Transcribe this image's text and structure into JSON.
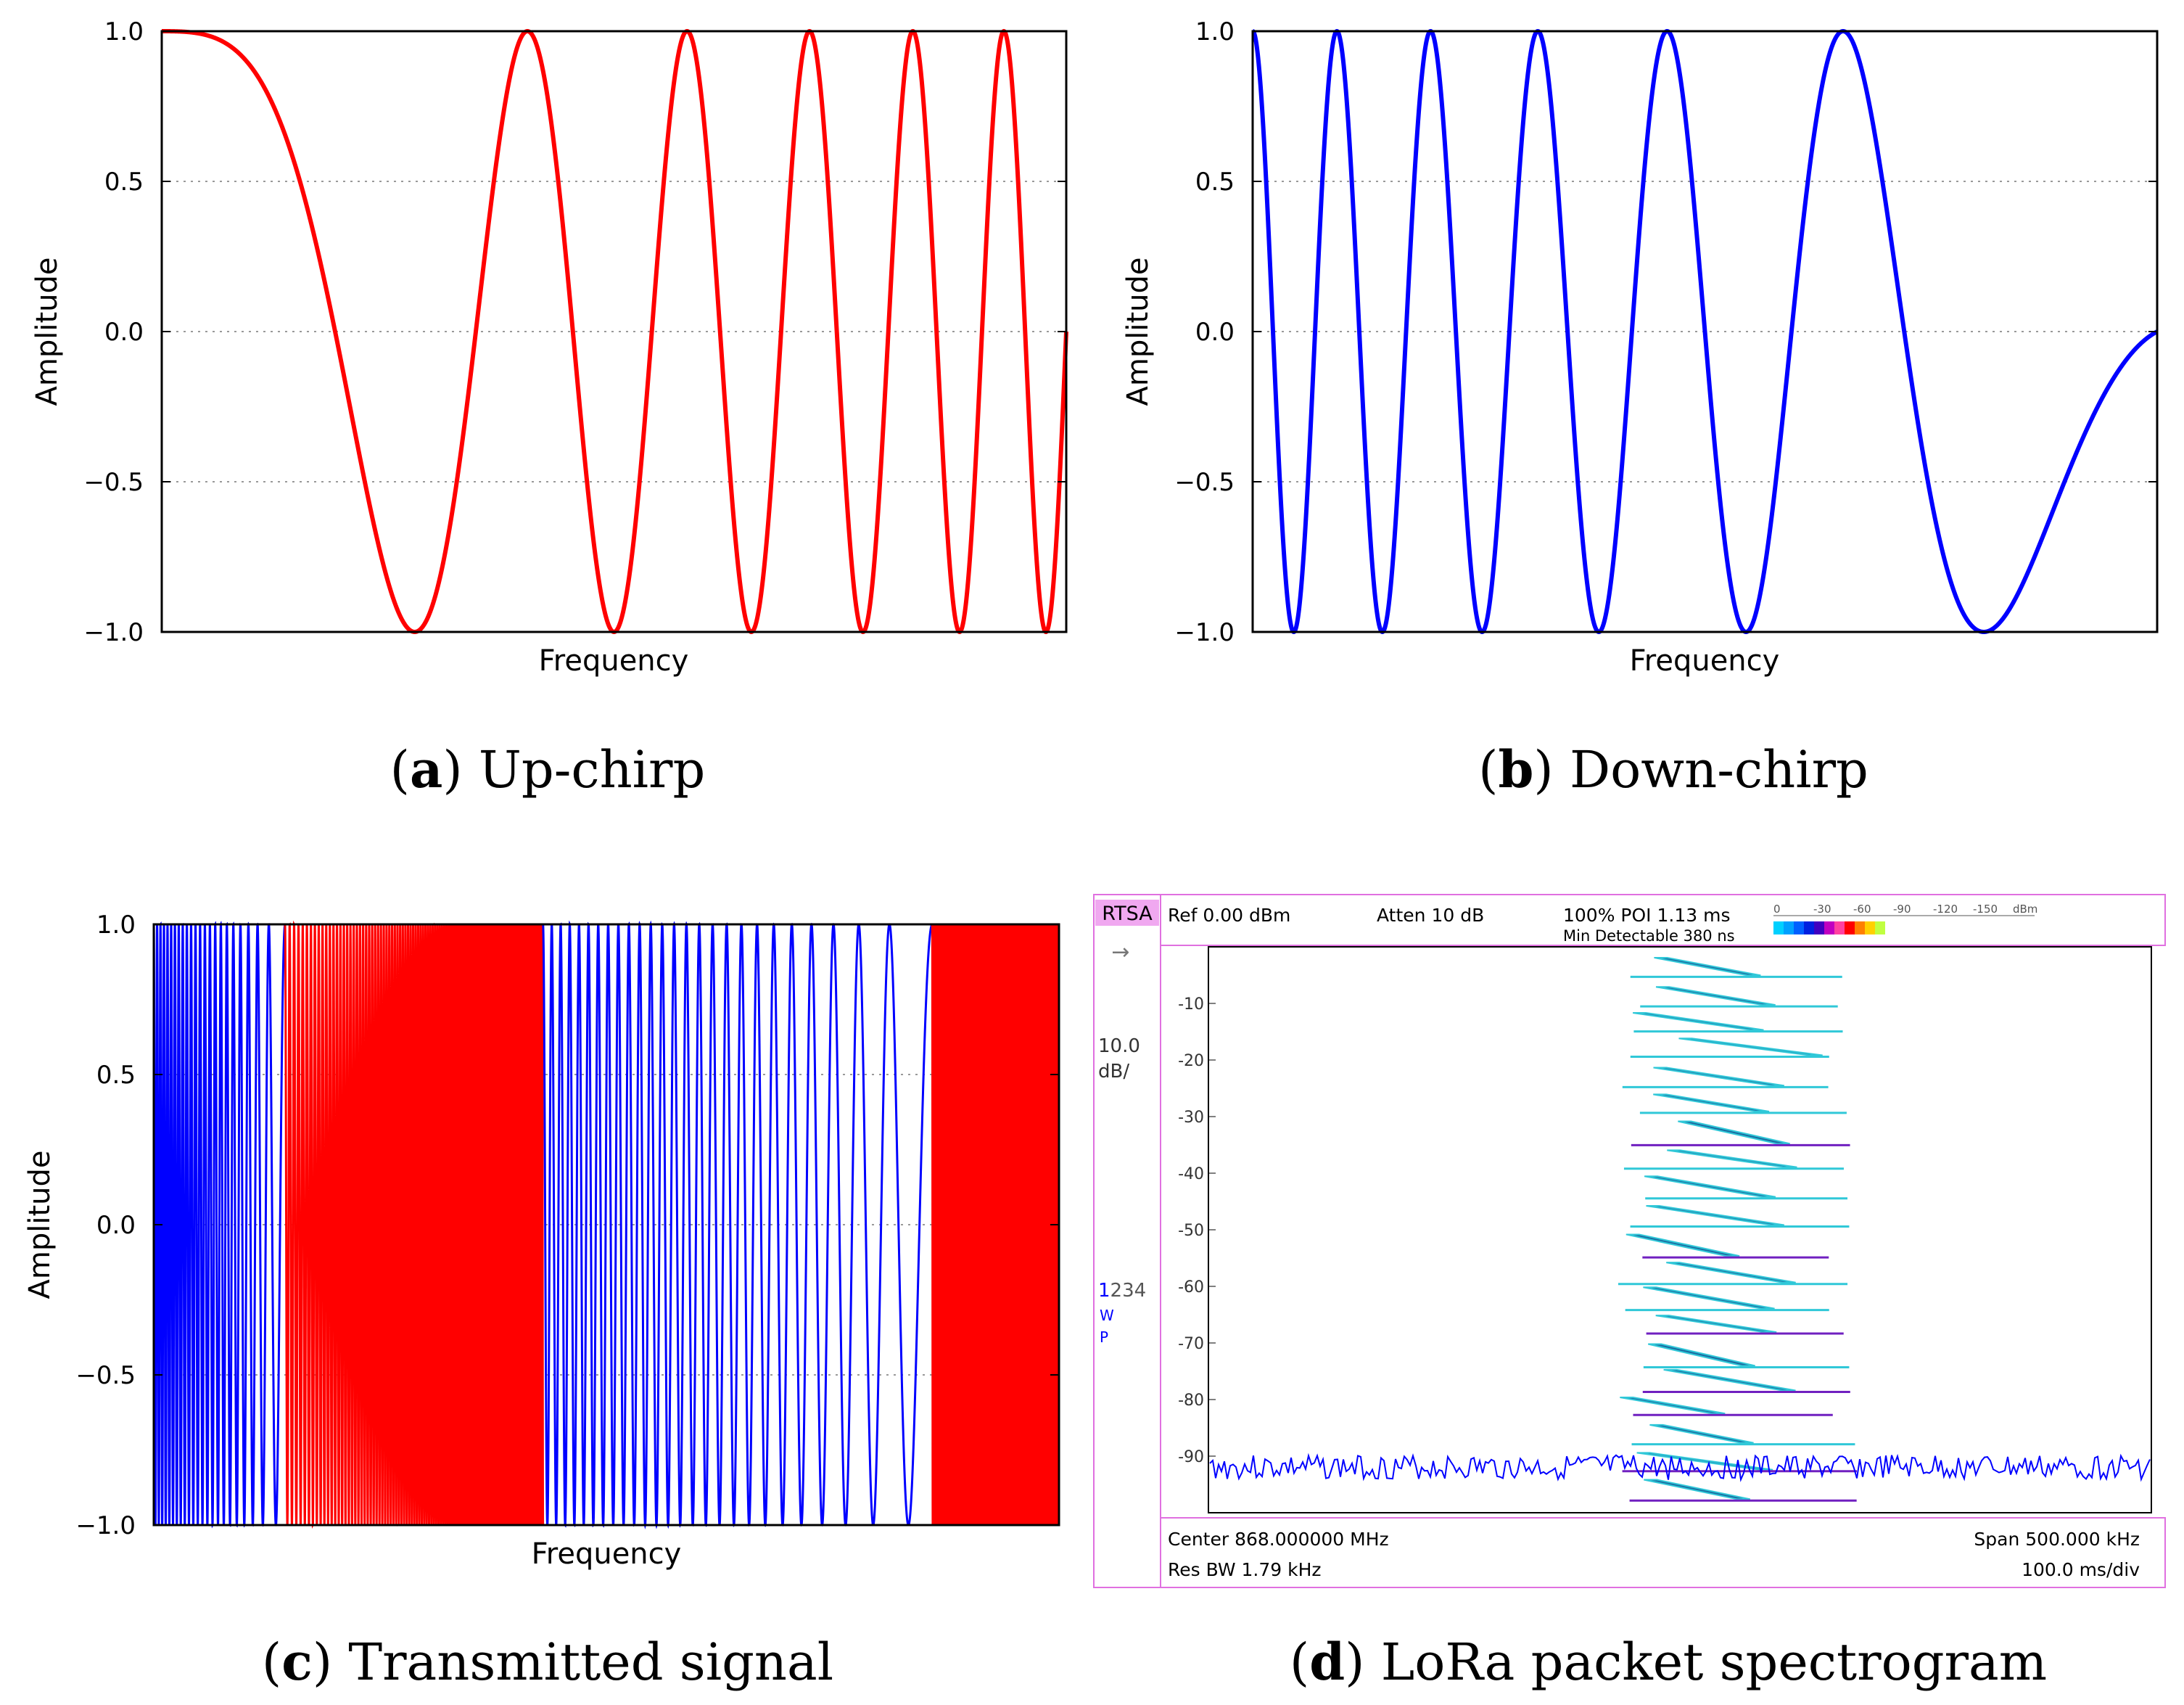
{
  "chart_data": [
    {
      "id": "a",
      "type": "line",
      "caption_letter": "a",
      "caption_text": "Up-chirp",
      "xlabel": "Frequency",
      "ylabel": "Amplitude",
      "ylim": [
        -1.0,
        1.0
      ],
      "yticks": [
        "1.0",
        "0.5",
        "0.0",
        "−0.5",
        "−1.0"
      ],
      "ytick_values": [
        1.0,
        0.5,
        0.0,
        -0.5,
        -1.0
      ],
      "grid": "horizontal-dotted",
      "series": [
        {
          "color": "#ff0000",
          "function": "cos(pi*(f0*t + (f1-f0)/2*t^2))",
          "t": [
            0,
            1
          ],
          "f0": 0.5,
          "f1": 22.5
        }
      ]
    },
    {
      "id": "b",
      "type": "line",
      "caption_letter": "b",
      "caption_text": "Down-chirp",
      "xlabel": "Frequency",
      "ylabel": "Amplitude",
      "ylim": [
        -1.0,
        1.0
      ],
      "yticks": [
        "1.0",
        "0.5",
        "0.0",
        "−0.5",
        "−1.0"
      ],
      "ytick_values": [
        1.0,
        0.5,
        0.0,
        -0.5,
        -1.0
      ],
      "grid": "horizontal-dotted",
      "series": [
        {
          "color": "#0000ff",
          "function": "cos(pi*(f0*t + (f1-f0)/2*t^2))",
          "t": [
            0,
            1
          ],
          "f0": 22.5,
          "f1": 0.5
        }
      ]
    },
    {
      "id": "c",
      "type": "line",
      "caption_letter": "c",
      "caption_text": "Transmitted signal",
      "xlabel": "Frequency",
      "ylabel": "Amplitude",
      "ylim": [
        -1.0,
        1.0
      ],
      "yticks": [
        "1.0",
        "0.5",
        "0.0",
        "−0.5",
        "−1.0"
      ],
      "ytick_values": [
        1.0,
        0.5,
        0.0,
        -0.5,
        -1.0
      ],
      "grid": "horizontal-dotted",
      "series": [
        {
          "color": "#0000ff",
          "segment": [
            0.0,
            0.145
          ],
          "f0": 80,
          "f1": 12
        },
        {
          "color": "#ff0000",
          "segment": [
            0.145,
            0.43
          ],
          "f0": 110,
          "f1": 300
        },
        {
          "color": "#0000ff",
          "segment": [
            0.43,
            0.86
          ],
          "f0": 90,
          "f1": 14
        },
        {
          "color": "#ff0000",
          "segment": [
            0.86,
            1.0
          ],
          "f0": 260,
          "f1": 320
        }
      ]
    },
    {
      "id": "d",
      "type": "heatmap",
      "caption_letter": "d",
      "caption_text": "LoRa packet spectrogram",
      "instrument": {
        "mode": "RTSA",
        "ref": "Ref 0.00 dBm",
        "atten": "Atten 10 dB",
        "poi": "100% POI 1.13 ms",
        "min_detectable": "Min Detectable 380 ns",
        "scale_value": "10.0",
        "scale_unit": "dB/",
        "traces_active": "1",
        "traces_rest": "234",
        "trace_w": "W",
        "trace_p": "P",
        "center": "Center 868.000000 MHz",
        "span": "Span 500.000 kHz",
        "res_bw": "Res BW 1.79 kHz",
        "time_div": "100.0 ms/div",
        "colorbar_labels": [
          "0",
          "-30",
          "-60",
          "-90",
          "-120",
          "-150",
          "dBm"
        ],
        "colorbar_colors": [
          "#00d0ff",
          "#00a0ff",
          "#0060ff",
          "#0020e0",
          "#4000c0",
          "#c000c0",
          "#ff40a0",
          "#ff0000",
          "#ff8000",
          "#ffd000",
          "#c0ff40"
        ],
        "y_tick_labels": [
          "-10",
          "-20",
          "-30",
          "-40",
          "-50",
          "-60",
          "-70",
          "-80",
          "-90"
        ],
        "trace_color": "#0000ff",
        "chirp_colors": [
          "#1a6aa0",
          "#30c8d8",
          "#7020c0"
        ],
        "chirp_count": 20
      }
    }
  ]
}
